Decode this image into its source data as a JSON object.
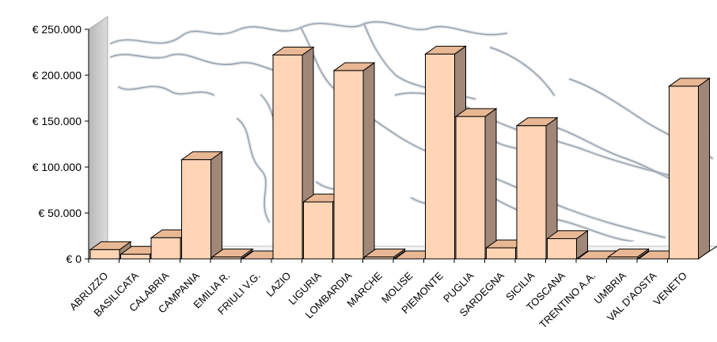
{
  "chart_data": {
    "type": "bar",
    "title": "",
    "xlabel": "",
    "ylabel": "",
    "ylim": [
      0,
      250000
    ],
    "yticks": [
      0,
      50000,
      100000,
      150000,
      200000,
      250000
    ],
    "ytick_labels": [
      "€ 0",
      "€ 50.000",
      "€ 100.000",
      "€ 150.000",
      "€ 200.000",
      "€ 250.000"
    ],
    "categories": [
      "ABRUZZO",
      "BASILICATA",
      "CALABRIA",
      "CAMPANIA",
      "EMILIA R.",
      "FRIULI V.G.",
      "LAZIO",
      "LIGURIA",
      "LOMBARDIA",
      "MARCHE",
      "MOLISE",
      "PIEMONTE",
      "PUGLIA",
      "SARDEGNA",
      "SICILIA",
      "TOSCANA",
      "TRENTINO A.A.",
      "UMBRIA",
      "VAL D'AOSTA",
      "VENETO"
    ],
    "values": [
      10000,
      5000,
      23000,
      108000,
      2000,
      0,
      222000,
      62000,
      205000,
      2000,
      0,
      223000,
      155000,
      12000,
      145000,
      22000,
      0,
      2000,
      0,
      188000
    ],
    "bar_style": "3d",
    "grid": false,
    "legend": "none",
    "background": "map of Italy",
    "colors": {
      "bar_front": "#ffd5b6",
      "bar_top": "#e8b894",
      "bar_side": "#a08778",
      "back_wall": "#ffffff",
      "side_wall": "#c8c8c8",
      "map_stroke": "#8f9aa6"
    }
  }
}
